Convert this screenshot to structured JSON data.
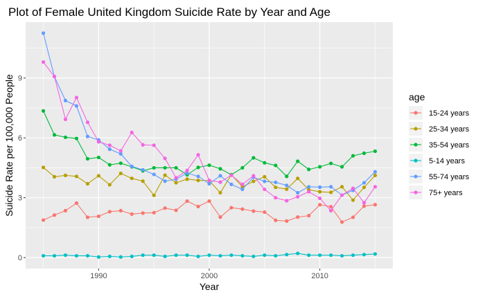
{
  "chart_data": {
    "type": "line",
    "title": "Plot of Female United Kingdom Suicide Rate by Year and Age",
    "xlabel": "Year",
    "ylabel": "Suicide Rate per 100,000 People",
    "xlim": [
      1983.4,
      2016.6
    ],
    "ylim": [
      -0.55,
      11.8
    ],
    "x_ticks": [
      1990,
      2000,
      2010
    ],
    "x_tick_labels": [
      "1990",
      "2000",
      "2010"
    ],
    "y_ticks": [
      0,
      3,
      6,
      9
    ],
    "y_tick_labels": [
      "0",
      "3",
      "6",
      "9"
    ],
    "grid": true,
    "legend": {
      "title": "age",
      "position": "right"
    },
    "x": [
      1985,
      1986,
      1987,
      1988,
      1989,
      1990,
      1991,
      1992,
      1993,
      1994,
      1995,
      1996,
      1997,
      1998,
      1999,
      2000,
      2001,
      2002,
      2003,
      2004,
      2005,
      2006,
      2007,
      2008,
      2009,
      2010,
      2011,
      2012,
      2013,
      2014,
      2015
    ],
    "series": [
      {
        "name": "15-24 years",
        "color": "#F8766D",
        "values": [
          1.88,
          2.13,
          2.35,
          2.73,
          2.02,
          2.07,
          2.3,
          2.35,
          2.18,
          2.23,
          2.25,
          2.48,
          2.37,
          2.83,
          2.56,
          2.83,
          2.03,
          2.5,
          2.43,
          2.33,
          2.28,
          1.87,
          1.83,
          2.03,
          2.1,
          2.65,
          2.55,
          1.78,
          2.02,
          2.58,
          2.65
        ]
      },
      {
        "name": "25-34 years",
        "color": "#B79F00",
        "values": [
          4.52,
          4.05,
          4.12,
          4.07,
          3.7,
          4.1,
          3.65,
          4.22,
          3.97,
          3.83,
          3.12,
          4.13,
          3.75,
          3.93,
          3.87,
          3.85,
          3.25,
          4.15,
          3.55,
          3.82,
          4.05,
          3.52,
          3.43,
          3.97,
          3.4,
          3.3,
          3.27,
          3.55,
          2.88,
          3.52,
          4.12
        ]
      },
      {
        "name": "35-54 years",
        "color": "#00BA38",
        "values": [
          7.35,
          6.15,
          6.03,
          5.97,
          4.95,
          5.02,
          4.65,
          4.73,
          4.55,
          4.35,
          4.5,
          4.5,
          4.5,
          4.15,
          4.52,
          4.63,
          4.45,
          4.15,
          4.5,
          5.0,
          4.75,
          4.62,
          4.07,
          4.83,
          4.42,
          4.55,
          4.72,
          4.55,
          5.1,
          5.23,
          5.33
        ]
      },
      {
        "name": "5-14 years",
        "color": "#00BFC4",
        "values": [
          0.09,
          0.09,
          0.12,
          0.09,
          0.09,
          0.03,
          0.06,
          0.03,
          0.06,
          0.12,
          0.12,
          0.06,
          0.12,
          0.12,
          0.06,
          0.12,
          0.09,
          0.12,
          0.09,
          0.06,
          0.12,
          0.09,
          0.15,
          0.21,
          0.12,
          0.12,
          0.12,
          0.09,
          0.12,
          0.15,
          0.18
        ]
      },
      {
        "name": "55-74 years",
        "color": "#619CFF",
        "values": [
          11.25,
          9.07,
          7.87,
          7.6,
          6.07,
          5.9,
          5.43,
          5.2,
          4.57,
          4.4,
          4.17,
          3.83,
          3.93,
          4.23,
          4.07,
          3.7,
          4.1,
          3.67,
          3.42,
          4.03,
          3.82,
          3.77,
          3.62,
          3.25,
          3.55,
          3.53,
          3.55,
          3.13,
          3.37,
          3.75,
          4.3
        ]
      },
      {
        "name": "75+ years",
        "color": "#F564E3",
        "values": [
          9.8,
          9.08,
          6.93,
          8.02,
          6.78,
          5.8,
          5.63,
          5.35,
          6.27,
          5.65,
          5.63,
          4.97,
          4.0,
          4.37,
          5.15,
          3.87,
          3.78,
          4.13,
          3.67,
          4.1,
          3.42,
          3.0,
          2.85,
          3.05,
          3.3,
          2.97,
          2.35,
          3.13,
          3.47,
          2.75,
          3.55
        ]
      }
    ]
  }
}
